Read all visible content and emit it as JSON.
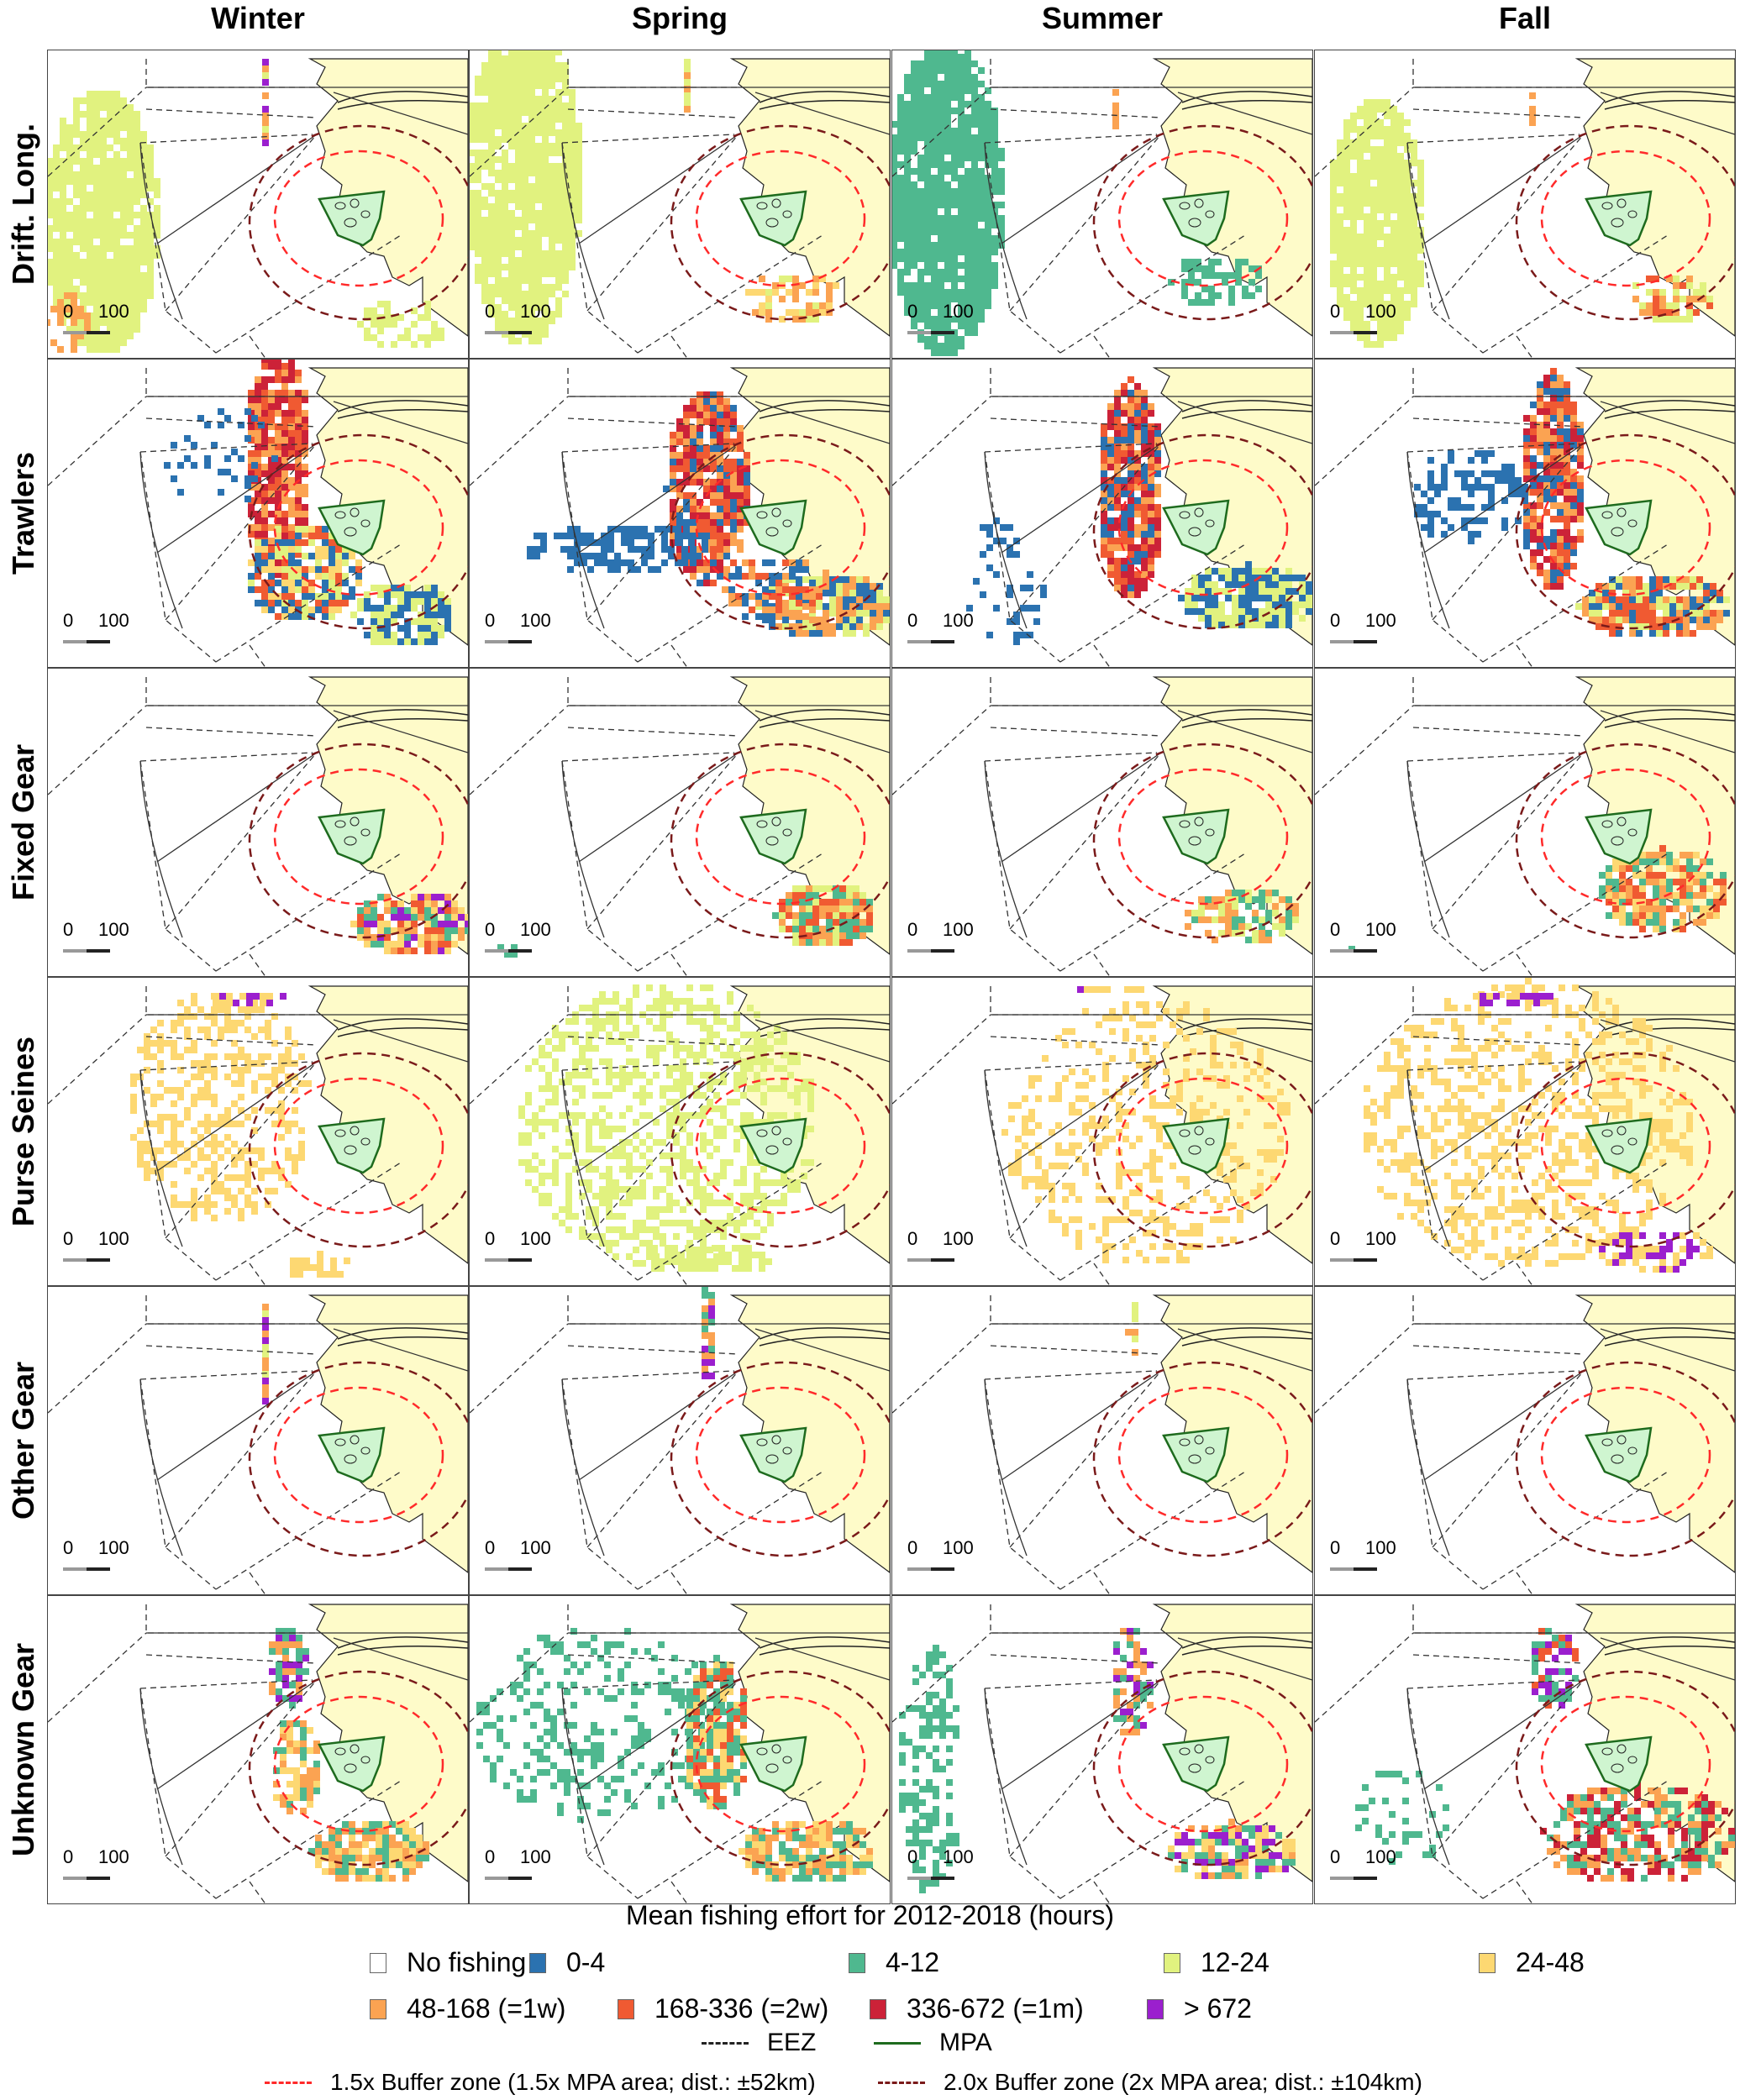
{
  "columns": [
    "Winter",
    "Spring",
    "Summer",
    "Fall"
  ],
  "rows": [
    "Drift. Long.",
    "Trawlers",
    "Fixed Gear",
    "Purse Seines",
    "Other Gear",
    "Unknown Gear"
  ],
  "scale_bar": {
    "start": "0",
    "end": "100"
  },
  "legend": {
    "title": "Mean fishing effort for 2012-2018 (hours)",
    "categories": [
      {
        "label": "No fishing",
        "color": "#ffffff"
      },
      {
        "label": "0-4",
        "color": "#2b72b0"
      },
      {
        "label": "4-12",
        "color": "#4fb88f"
      },
      {
        "label": "12-24",
        "color": "#e1f27f"
      },
      {
        "label": "24-48",
        "color": "#fdd872"
      },
      {
        "label": "48-168 (=1w)",
        "color": "#fba352"
      },
      {
        "label": "168-336 (=2w)",
        "color": "#f05a32"
      },
      {
        "label": "336-672 (=1m)",
        "color": "#cc2238"
      },
      {
        "label": "> 672",
        "color": "#9b1fce"
      }
    ],
    "lines": [
      {
        "label": "EEZ",
        "color": "#222222"
      },
      {
        "label": "MPA",
        "color": "#1e6b1e"
      },
      {
        "label": "1.5x Buffer zone (1.5x MPA area; dist.: ±52km)",
        "color": "#ff2a2a"
      },
      {
        "label": "2.0x Buffer zone (2x MPA area; dist.: ±104km)",
        "color": "#7a1a1a"
      }
    ]
  },
  "colors": {
    "land": "#fefbc9",
    "mpa_fill": "#cff5d0"
  }
}
